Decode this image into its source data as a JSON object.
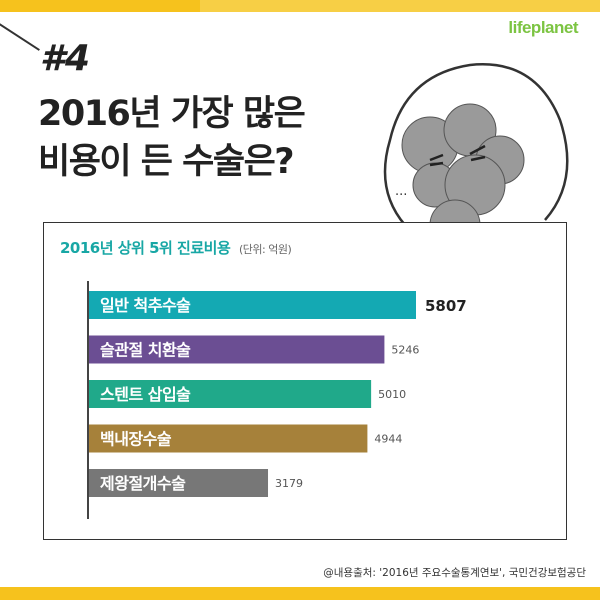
{
  "brand": {
    "logo_text": "lifeplanet",
    "accent": "#f6c21d",
    "logo_color": "#7cc442"
  },
  "headline": {
    "number": "#4",
    "line1": "2016년 가장 많은",
    "line2": "비용이 든 수술은?"
  },
  "character": {
    "speech": "..."
  },
  "chart_data": {
    "type": "bar",
    "orientation": "horizontal",
    "title": "2016년 상위 5위 진료비용",
    "unit_label": "(단위: 억원)",
    "categories": [
      "일반 척추수술",
      "슬관절 치환술",
      "스텐트 삽입술",
      "백내장수술",
      "제왕절개수술"
    ],
    "values": [
      5807,
      5246,
      5010,
      4944,
      3179
    ],
    "colors": [
      "#14a9b3",
      "#6b4e93",
      "#20a98a",
      "#a6813a",
      "#777777"
    ],
    "xlim": [
      0,
      6000
    ],
    "grid": false,
    "legend": "none"
  },
  "source": "@내용출처: '2016년 주요수술통계연보', 국민건강보험공단"
}
